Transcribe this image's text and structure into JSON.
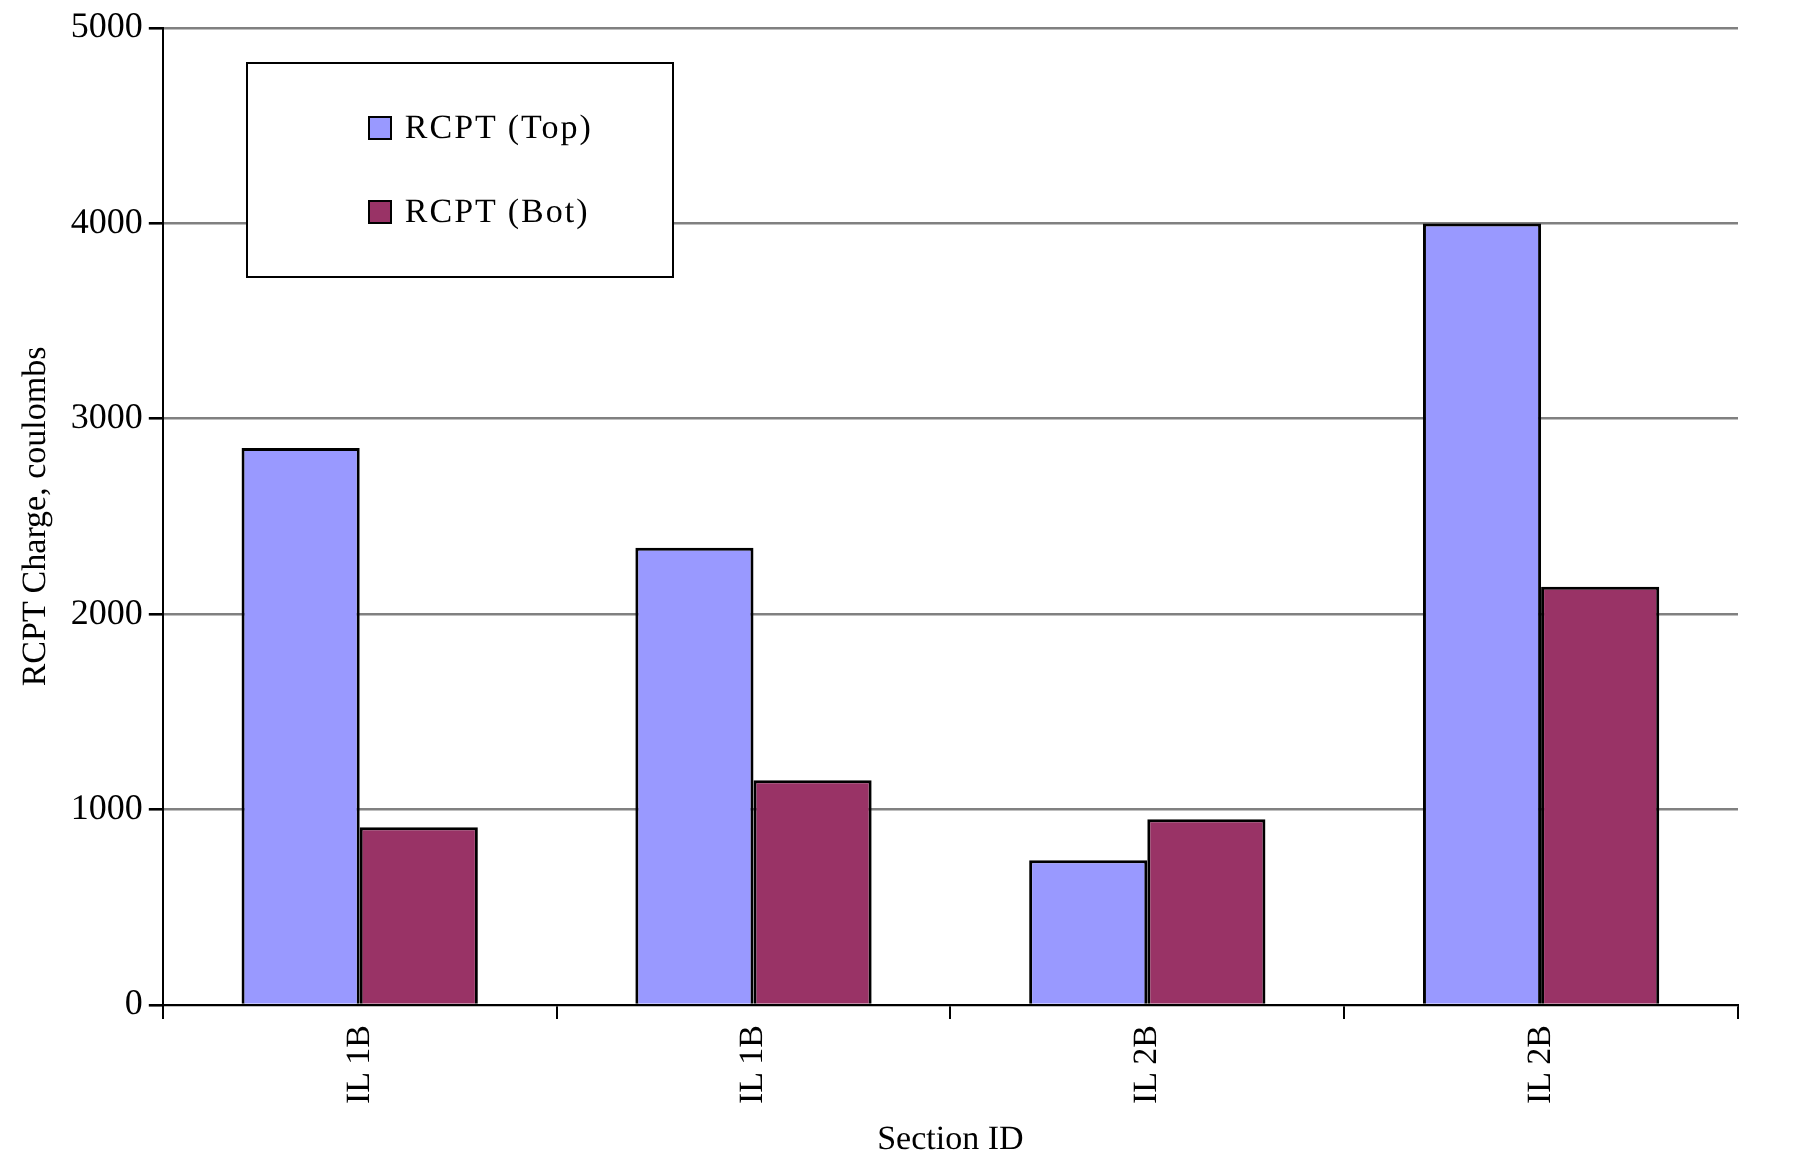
{
  "chart_data": {
    "type": "bar",
    "xlabel": "Section ID",
    "ylabel": "RCPT Charge, coulombs",
    "categories": [
      "IL 1B",
      "IL 1B",
      "IL 2B",
      "IL 2B"
    ],
    "series": [
      {
        "name": "RCPT (Top)",
        "color": "#9999ff",
        "values": [
          2850,
          2340,
          740,
          4000
        ]
      },
      {
        "name": "RCPT (Bot)",
        "color": "#993366",
        "values": [
          910,
          1150,
          950,
          2140
        ]
      }
    ],
    "ylim": [
      0,
      5000
    ],
    "yticks": [
      0,
      1000,
      2000,
      3000,
      4000,
      5000
    ],
    "grid": "y",
    "legend": "top left"
  }
}
